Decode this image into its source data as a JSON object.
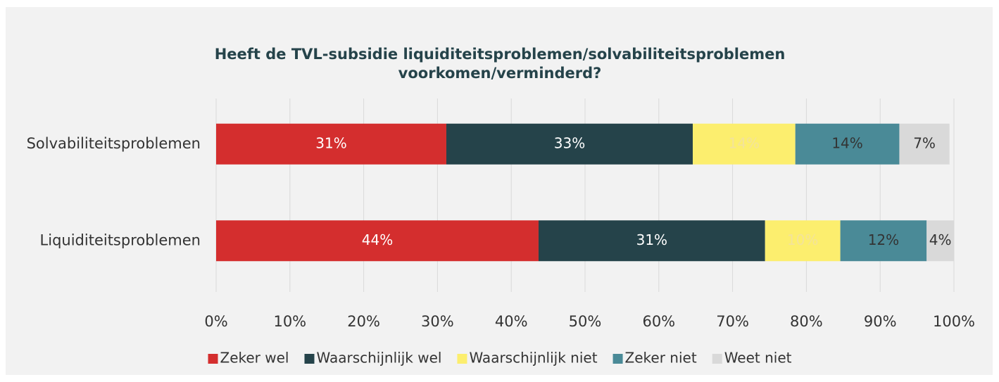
{
  "chart_data": {
    "type": "stacked-barh",
    "title": [
      "Heeft de TVL-subsidie liquiditeitsproblemen/solvabiliteitsproblemen",
      "voorkomen/verminderd?"
    ],
    "categories": [
      "Solvabiliteitsproblemen",
      "Liquiditeitsproblemen"
    ],
    "series": [
      {
        "name": "Zeker wel",
        "color": "#d42e2e",
        "label_color": "#ffffff",
        "values": [
          31.2,
          43.7
        ],
        "value_labels": [
          "31%",
          "44%"
        ]
      },
      {
        "name": "Waarschijnlijk wel",
        "color": "#25434a",
        "label_color": "#ffffff",
        "values": [
          33.4,
          30.7
        ],
        "value_labels": [
          "33%",
          "31%"
        ]
      },
      {
        "name": "Waarschijnlijk niet",
        "color": "#fcee6e",
        "label_color": "#f3e39a",
        "values": [
          13.9,
          10.2
        ],
        "value_labels": [
          "14%",
          "10%"
        ]
      },
      {
        "name": "Zeker niet",
        "color": "#4a8a97",
        "label_color": "#333333",
        "values": [
          14.1,
          11.7
        ],
        "value_labels": [
          "14%",
          "12%"
        ]
      },
      {
        "name": "Weet niet",
        "color": "#d9d9d9",
        "label_color": "#333333",
        "values": [
          6.8,
          3.7
        ],
        "value_labels": [
          "7%",
          "4%"
        ]
      }
    ],
    "xlim": [
      0,
      100
    ],
    "xticks": [
      {
        "value": 0,
        "label": "0%"
      },
      {
        "value": 10,
        "label": "10%"
      },
      {
        "value": 20,
        "label": "20%"
      },
      {
        "value": 30,
        "label": "30%"
      },
      {
        "value": 40,
        "label": "40%"
      },
      {
        "value": 50,
        "label": "50%"
      },
      {
        "value": 60,
        "label": "60%"
      },
      {
        "value": 70,
        "label": "70%"
      },
      {
        "value": 80,
        "label": "80%"
      },
      {
        "value": 90,
        "label": "90%"
      },
      {
        "value": 100,
        "label": "100%"
      }
    ],
    "grid": true,
    "legend": "bottom"
  }
}
